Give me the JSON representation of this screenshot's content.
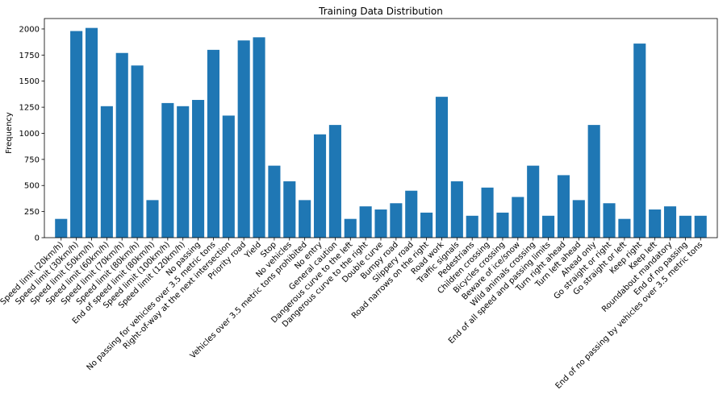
{
  "chart_data": {
    "type": "bar",
    "title": "Training Data Distribution",
    "xlabel": "",
    "ylabel": "Frequency",
    "ylim": [
      0,
      2100
    ],
    "yticks": [
      0,
      250,
      500,
      750,
      1000,
      1250,
      1500,
      1750,
      2000
    ],
    "grid": false,
    "bar_color": "#1f77b4",
    "categories": [
      "Speed limit (20km/h)",
      "Speed limit (30km/h)",
      "Speed limit (50km/h)",
      "Speed limit (60km/h)",
      "Speed limit (70km/h)",
      "Speed limit (80km/h)",
      "End of speed limit (80km/h)",
      "Speed limit (100km/h)",
      "Speed limit (120km/h)",
      "No passing",
      "No passing for vehicles over 3.5 metric tons",
      "Right-of-way at the next intersection",
      "Priority road",
      "Yield",
      "Stop",
      "No vehicles",
      "Vehicles over 3.5 metric tons prohibited",
      "No entry",
      "General caution",
      "Dangerous curve to the left",
      "Dangerous curve to the right",
      "Double curve",
      "Bumpy road",
      "Slippery road",
      "Road narrows on the right",
      "Road work",
      "Traffic signals",
      "Pedestrians",
      "Children crossing",
      "Bicycles crossing",
      "Beware of ice/snow",
      "Wild animals crossing",
      "End of all speed and passing limits",
      "Turn right ahead",
      "Turn left ahead",
      "Ahead only",
      "Go straight or right",
      "Go straight or left",
      "Keep right",
      "Keep left",
      "Roundabout mandatory",
      "End of no passing",
      "End of no passing by vehicles over 3.5 metric tons"
    ],
    "values": [
      180,
      1980,
      2010,
      1260,
      1770,
      1650,
      360,
      1290,
      1260,
      1320,
      1800,
      1170,
      1890,
      1920,
      690,
      540,
      360,
      990,
      1080,
      180,
      300,
      270,
      330,
      450,
      240,
      1350,
      540,
      210,
      480,
      240,
      390,
      690,
      210,
      599,
      360,
      1080,
      330,
      180,
      1860,
      270,
      300,
      210,
      210
    ]
  }
}
